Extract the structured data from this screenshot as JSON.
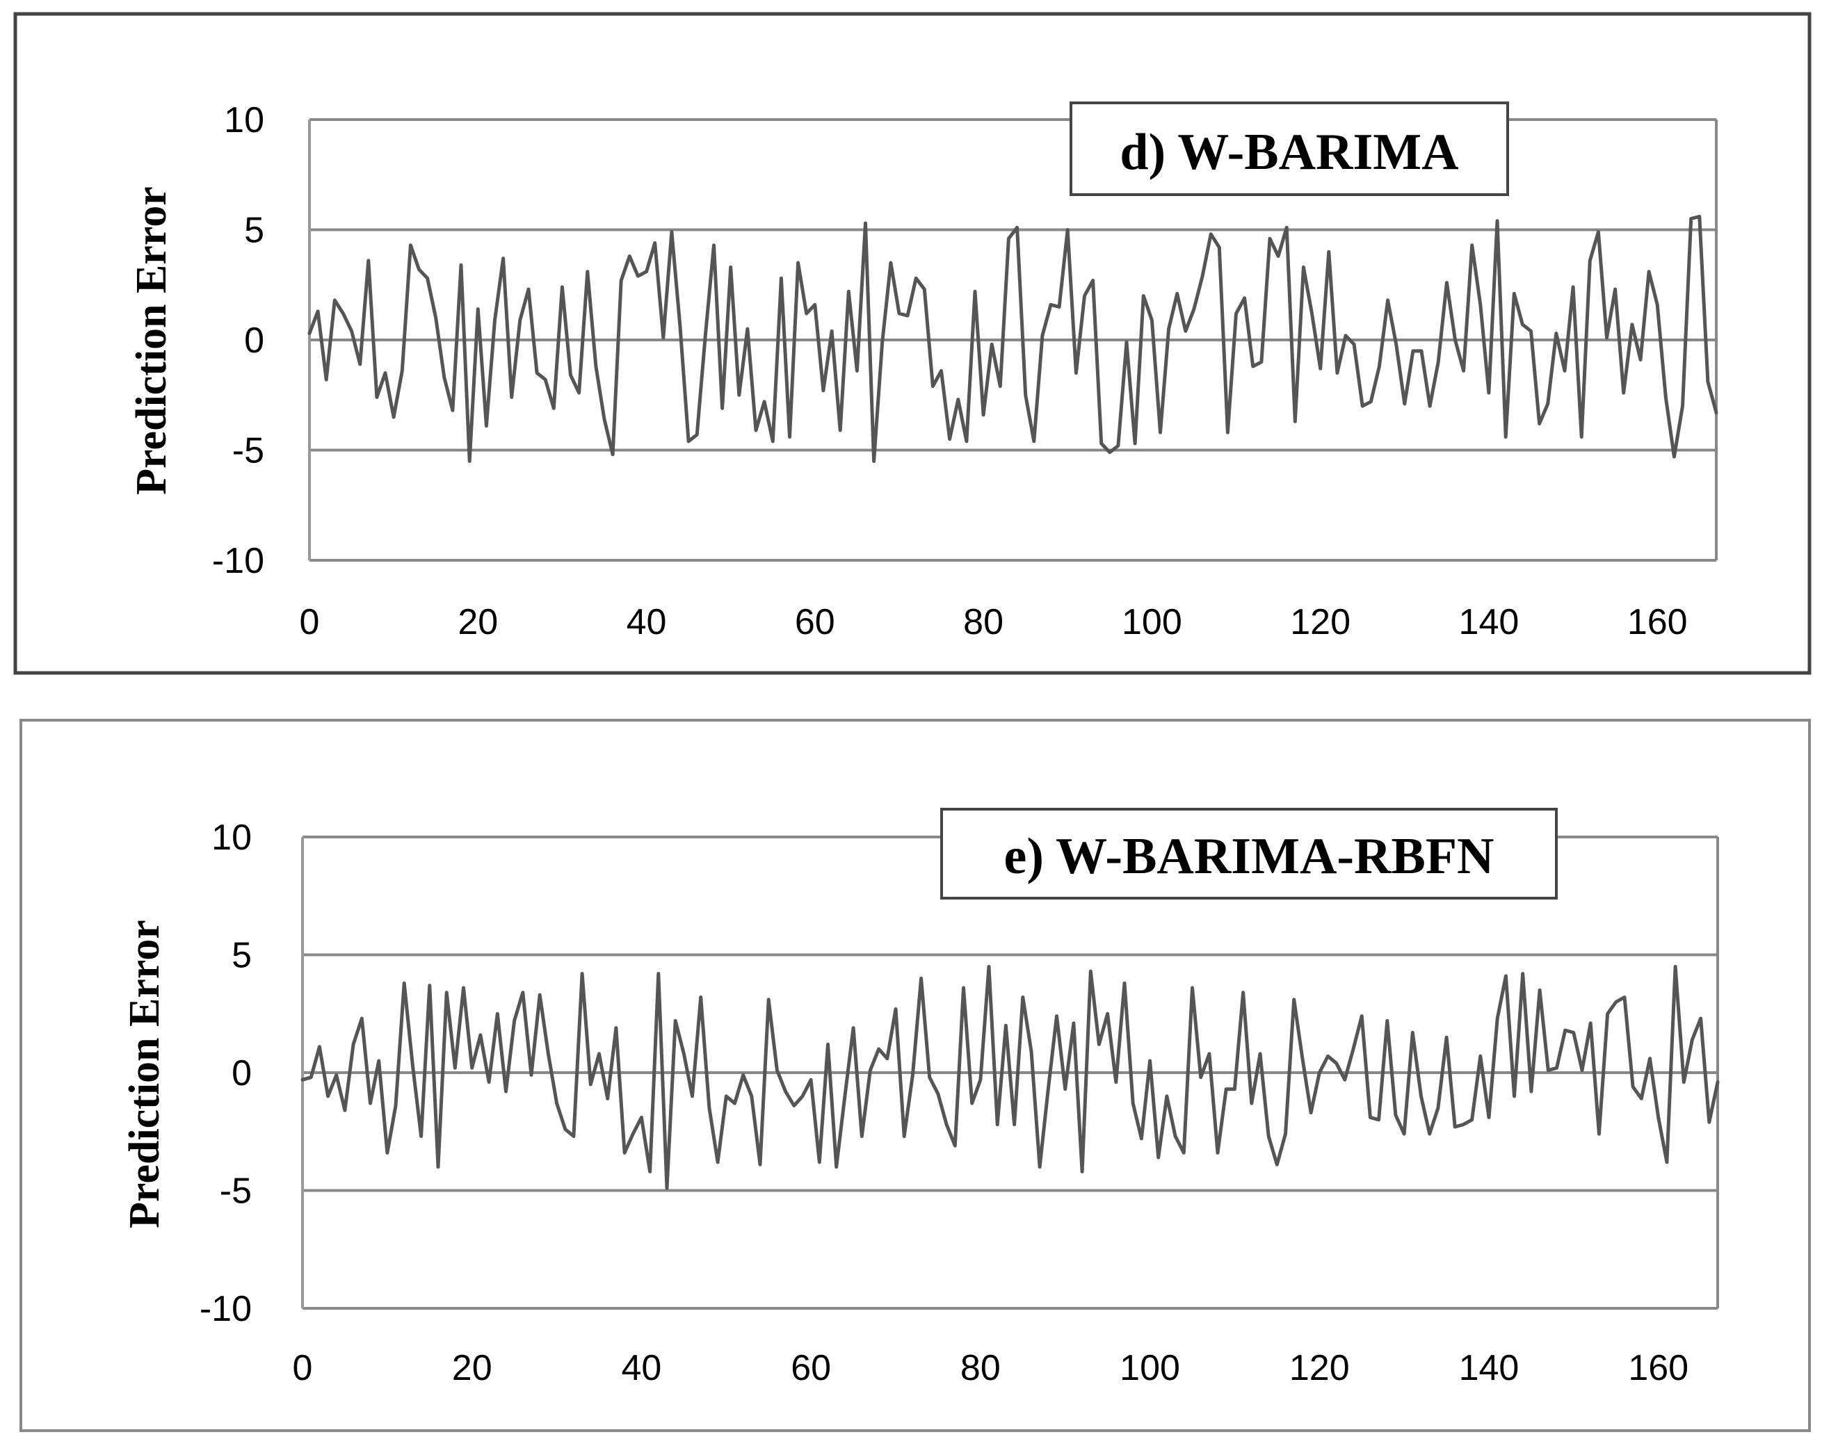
{
  "chart_data": [
    {
      "type": "line",
      "title": "d) W-BARIMA",
      "xlabel": "",
      "ylabel": "Prediction Error",
      "xlim": [
        0,
        167
      ],
      "ylim": [
        -10,
        10
      ],
      "x_ticks": [
        "0",
        "20",
        "40",
        "60",
        "80",
        "100",
        "120",
        "140",
        "160"
      ],
      "y_ticks": [
        "10",
        "5",
        "0",
        "-5",
        "-10"
      ],
      "grid": true,
      "series": [
        {
          "x": [
            0,
            1,
            2,
            3,
            4,
            5,
            6,
            7,
            8,
            9,
            10,
            11,
            12,
            13,
            14,
            15,
            16,
            17,
            18,
            19,
            20,
            21,
            22,
            23,
            24,
            25,
            26,
            27,
            28,
            29,
            30,
            31,
            32,
            33,
            34,
            35,
            36,
            37,
            38,
            39,
            40,
            41,
            42,
            43,
            44,
            45,
            46,
            47,
            48,
            49,
            50,
            51,
            52,
            53,
            54,
            55,
            56,
            57,
            58,
            59,
            60,
            61,
            62,
            63,
            64,
            65,
            66,
            67,
            68,
            69,
            70,
            71,
            72,
            73,
            74,
            75,
            76,
            77,
            78,
            79,
            80,
            81,
            82,
            83,
            84,
            85,
            86,
            87,
            88,
            89,
            90,
            91,
            92,
            93,
            94,
            95,
            96,
            97,
            98,
            99,
            100,
            101,
            102,
            103,
            104,
            105,
            106,
            107,
            108,
            109,
            110,
            111,
            112,
            113,
            114,
            115,
            116,
            117,
            118,
            119,
            120,
            121,
            122,
            123,
            124,
            125,
            126,
            127,
            128,
            129,
            130,
            131,
            132,
            133,
            134,
            135,
            136,
            137,
            138,
            139,
            140,
            141,
            142,
            143,
            144,
            145,
            146,
            147,
            148,
            149,
            150,
            151,
            152,
            153,
            154,
            155,
            156,
            157,
            158,
            159,
            160,
            161,
            162,
            163,
            164,
            165,
            166,
            167
          ],
          "values": [
            0.3,
            1.3,
            -1.8,
            1.8,
            1.2,
            0.4,
            -1.1,
            3.6,
            -2.6,
            -1.5,
            -3.5,
            -1.4,
            4.3,
            3.2,
            2.8,
            1.0,
            -1.7,
            -3.2,
            3.4,
            -5.5,
            1.4,
            -3.9,
            0.9,
            3.7,
            -2.6,
            0.9,
            2.3,
            -1.5,
            -1.8,
            -3.1,
            2.4,
            -1.6,
            -2.4,
            3.1,
            -1.2,
            -3.6,
            -5.2,
            2.7,
            3.8,
            2.9,
            3.1,
            4.4,
            0.1,
            4.9,
            0.6,
            -4.6,
            -4.3,
            0.2,
            4.3,
            -3.1,
            3.3,
            -2.5,
            0.5,
            -4.1,
            -2.8,
            -4.6,
            2.8,
            -4.4,
            3.5,
            1.2,
            1.6,
            -2.3,
            0.4,
            -4.1,
            2.2,
            -1.4,
            5.3,
            -5.5,
            -0.1,
            3.5,
            1.2,
            1.1,
            2.8,
            2.3,
            -2.1,
            -1.4,
            -4.5,
            -2.7,
            -4.6,
            2.2,
            -3.4,
            -0.2,
            -2.1,
            4.6,
            5.1,
            -2.5,
            -4.6,
            0.2,
            1.6,
            1.5,
            5.0,
            -1.5,
            2.0,
            2.7,
            -4.7,
            -5.1,
            -4.8,
            -0.1,
            -4.7,
            2.0,
            0.9,
            -4.2,
            0.5,
            2.1,
            0.4,
            1.4,
            2.9,
            4.8,
            4.2,
            -4.2,
            1.2,
            1.9,
            -1.2,
            -1.0,
            4.6,
            3.8,
            5.1,
            -3.7,
            3.3,
            1.2,
            -1.3,
            4.0,
            -1.5,
            0.2,
            -0.2,
            -3.0,
            -2.8,
            -1.2,
            1.8,
            -0.2,
            -2.9,
            -0.5,
            -0.5,
            -3.0,
            -1.0,
            2.6,
            0.0,
            -1.4,
            4.3,
            1.6,
            -2.4,
            5.4,
            -4.4,
            2.1,
            0.7,
            0.4,
            -3.8,
            -2.9,
            0.3,
            -1.4,
            2.4,
            -4.4,
            3.6,
            4.9,
            0.1,
            2.3,
            -2.4,
            0.7,
            -0.9,
            3.1,
            1.6,
            -2.6,
            -5.3,
            -3.0,
            5.5,
            5.6,
            -1.9,
            -3.3
          ]
        }
      ]
    },
    {
      "type": "line",
      "title": "e) W-BARIMA-RBFN",
      "xlabel": "",
      "ylabel": "Prediction Error",
      "xlim": [
        0,
        167
      ],
      "ylim": [
        -10,
        10
      ],
      "x_ticks": [
        "0",
        "20",
        "40",
        "60",
        "80",
        "100",
        "120",
        "140",
        "160"
      ],
      "y_ticks": [
        "10",
        "5",
        "0",
        "-5",
        "-10"
      ],
      "grid": true,
      "series": [
        {
          "x": [
            0,
            1,
            2,
            3,
            4,
            5,
            6,
            7,
            8,
            9,
            10,
            11,
            12,
            13,
            14,
            15,
            16,
            17,
            18,
            19,
            20,
            21,
            22,
            23,
            24,
            25,
            26,
            27,
            28,
            29,
            30,
            31,
            32,
            33,
            34,
            35,
            36,
            37,
            38,
            39,
            40,
            41,
            42,
            43,
            44,
            45,
            46,
            47,
            48,
            49,
            50,
            51,
            52,
            53,
            54,
            55,
            56,
            57,
            58,
            59,
            60,
            61,
            62,
            63,
            64,
            65,
            66,
            67,
            68,
            69,
            70,
            71,
            72,
            73,
            74,
            75,
            76,
            77,
            78,
            79,
            80,
            81,
            82,
            83,
            84,
            85,
            86,
            87,
            88,
            89,
            90,
            91,
            92,
            93,
            94,
            95,
            96,
            97,
            98,
            99,
            100,
            101,
            102,
            103,
            104,
            105,
            106,
            107,
            108,
            109,
            110,
            111,
            112,
            113,
            114,
            115,
            116,
            117,
            118,
            119,
            120,
            121,
            122,
            123,
            124,
            125,
            126,
            127,
            128,
            129,
            130,
            131,
            132,
            133,
            134,
            135,
            136,
            137,
            138,
            139,
            140,
            141,
            142,
            143,
            144,
            145,
            146,
            147,
            148,
            149,
            150,
            151,
            152,
            153,
            154,
            155,
            156,
            157,
            158,
            159,
            160,
            161,
            162,
            163,
            164,
            165,
            166,
            167
          ],
          "values": [
            -0.3,
            -0.2,
            1.1,
            -1.0,
            -0.1,
            -1.6,
            1.2,
            2.3,
            -1.3,
            0.5,
            -3.4,
            -1.4,
            3.8,
            0.3,
            -2.7,
            3.7,
            -4.0,
            3.4,
            0.2,
            3.6,
            0.2,
            1.6,
            -0.4,
            2.5,
            -0.8,
            2.2,
            3.4,
            -0.1,
            3.3,
            0.8,
            -1.3,
            -2.4,
            -2.7,
            4.2,
            -0.5,
            0.8,
            -1.1,
            1.9,
            -3.4,
            -2.6,
            -1.9,
            -4.2,
            4.2,
            -4.9,
            2.2,
            0.8,
            -1.0,
            3.2,
            -1.5,
            -3.8,
            -1.0,
            -1.3,
            -0.1,
            -1.0,
            -3.9,
            3.1,
            0.1,
            -0.8,
            -1.4,
            -1.0,
            -0.3,
            -3.8,
            1.2,
            -4.0,
            -1.0,
            1.9,
            -2.7,
            0.1,
            1.0,
            0.6,
            2.7,
            -2.7,
            -0.1,
            4.0,
            -0.2,
            -0.9,
            -2.2,
            -3.1,
            3.6,
            -1.3,
            -0.3,
            4.5,
            -2.2,
            2.0,
            -2.2,
            3.2,
            0.9,
            -4.0,
            -0.7,
            2.4,
            -0.7,
            2.1,
            -4.2,
            4.3,
            1.2,
            2.5,
            -0.4,
            3.8,
            -1.3,
            -2.8,
            0.5,
            -3.6,
            -1.0,
            -2.7,
            -3.4,
            3.6,
            -0.2,
            0.8,
            -3.4,
            -0.7,
            -0.7,
            3.4,
            -1.3,
            0.8,
            -2.7,
            -3.9,
            -2.6,
            3.1,
            0.6,
            -1.7,
            0.0,
            0.7,
            0.4,
            -0.3,
            1.0,
            2.4,
            -1.9,
            -2.0,
            2.2,
            -1.8,
            -2.6,
            1.7,
            -1.0,
            -2.6,
            -1.5,
            1.5,
            -2.3,
            -2.2,
            -2.0,
            0.7,
            -1.9,
            2.3,
            4.1,
            -1.0,
            4.2,
            -0.8,
            3.5,
            0.1,
            0.2,
            1.8,
            1.7,
            0.1,
            2.1,
            -2.6,
            2.5,
            3.0,
            3.2,
            -0.6,
            -1.1,
            0.6,
            -1.9,
            -3.8,
            4.5,
            -0.4,
            1.4,
            2.3,
            -2.1,
            -0.4
          ]
        }
      ]
    }
  ],
  "style": {
    "line_color": "#555555",
    "grid_color": "#888888",
    "frame_color": "#444444",
    "axis_color": "#999999"
  }
}
